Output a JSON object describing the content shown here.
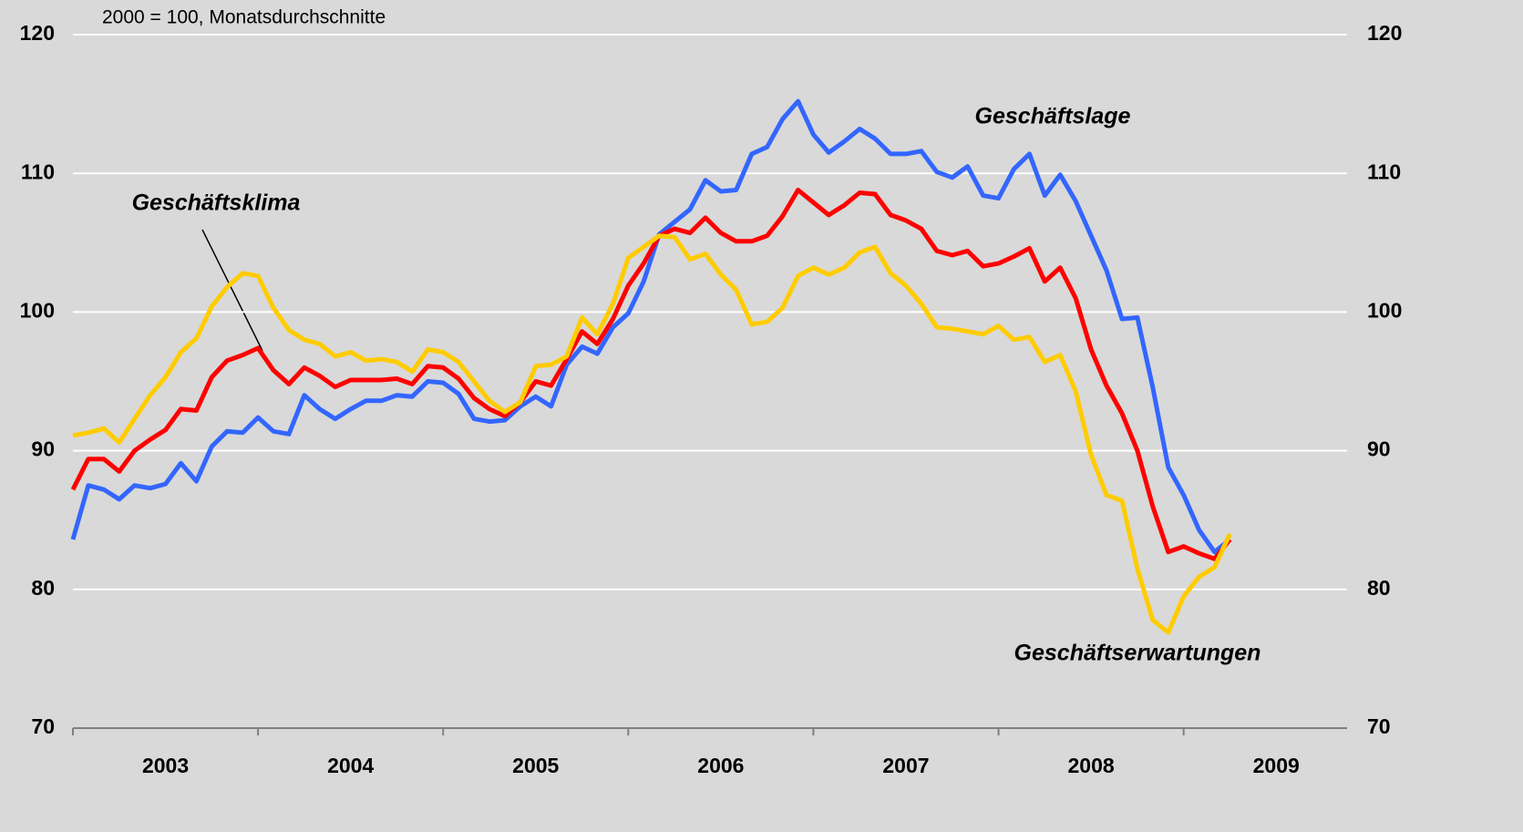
{
  "chart_data": {
    "type": "line",
    "subtitle": "2000 = 100, Monatsdurchschnitte",
    "x": [
      2003,
      2003.083,
      2003.167,
      2003.25,
      2003.333,
      2003.417,
      2003.5,
      2003.583,
      2003.667,
      2003.75,
      2003.833,
      2003.917,
      2004,
      2004.083,
      2004.167,
      2004.25,
      2004.333,
      2004.417,
      2004.5,
      2004.583,
      2004.667,
      2004.75,
      2004.833,
      2004.917,
      2005,
      2005.083,
      2005.167,
      2005.25,
      2005.333,
      2005.417,
      2005.5,
      2005.583,
      2005.667,
      2005.75,
      2005.833,
      2005.917,
      2006,
      2006.083,
      2006.167,
      2006.25,
      2006.333,
      2006.417,
      2006.5,
      2006.583,
      2006.667,
      2006.75,
      2006.833,
      2006.917,
      2007,
      2007.083,
      2007.167,
      2007.25,
      2007.333,
      2007.417,
      2007.5,
      2007.583,
      2007.667,
      2007.75,
      2007.833,
      2007.917,
      2008,
      2008.083,
      2008.167,
      2008.25,
      2008.333,
      2008.417,
      2008.5,
      2008.583,
      2008.667,
      2008.75,
      2008.833,
      2008.917,
      2009,
      2009.083,
      2009.167,
      2009.25
    ],
    "series": [
      {
        "name": "Geschäftslage",
        "color": "#3366ff",
        "values": [
          83.6,
          87.5,
          87.2,
          86.5,
          87.5,
          87.3,
          87.6,
          89.1,
          87.8,
          90.3,
          91.4,
          91.3,
          92.4,
          91.4,
          91.2,
          94.0,
          93.0,
          92.3,
          93.0,
          93.6,
          93.6,
          94.0,
          93.9,
          95.0,
          94.9,
          94.1,
          92.3,
          92.1,
          92.2,
          93.2,
          93.9,
          93.2,
          96.2,
          97.5,
          97.0,
          98.9,
          99.9,
          102.2,
          105.6,
          106.5,
          107.4,
          109.5,
          108.7,
          108.8,
          111.4,
          111.9,
          113.9,
          115.2,
          112.8,
          111.5,
          112.3,
          113.2,
          112.5,
          111.4,
          111.4,
          111.6,
          110.1,
          109.7,
          110.5,
          108.4,
          108.2,
          110.3,
          111.4,
          108.4,
          109.9,
          108.0,
          105.5,
          103.0,
          99.5,
          99.6,
          94.6,
          88.8,
          86.8,
          84.3,
          82.7,
          83.6
        ]
      },
      {
        "name": "Geschäftsklima",
        "color": "#ff0000",
        "values": [
          87.2,
          89.4,
          89.4,
          88.5,
          90.0,
          90.8,
          91.5,
          93.0,
          92.9,
          95.3,
          96.5,
          96.9,
          97.4,
          95.8,
          94.8,
          96.0,
          95.4,
          94.6,
          95.1,
          95.1,
          95.1,
          95.2,
          94.8,
          96.1,
          96.0,
          95.2,
          93.8,
          93.0,
          92.5,
          93.5,
          95.0,
          94.7,
          96.6,
          98.6,
          97.7,
          99.5,
          101.9,
          103.5,
          105.5,
          106.0,
          105.7,
          106.8,
          105.7,
          105.1,
          105.1,
          105.5,
          106.9,
          108.8,
          107.9,
          107.0,
          107.7,
          108.6,
          108.5,
          107.0,
          106.6,
          106.0,
          104.4,
          104.1,
          104.4,
          103.3,
          103.5,
          104.0,
          104.6,
          102.2,
          103.2,
          101.0,
          97.3,
          94.7,
          92.7,
          90.0,
          86.0,
          82.7,
          83.1,
          82.6,
          82.2,
          83.6
        ]
      },
      {
        "name": "Geschäftserwartungen",
        "color": "#ffcc00",
        "values": [
          91.1,
          91.3,
          91.6,
          90.6,
          92.3,
          94.0,
          95.3,
          97.1,
          98.1,
          100.4,
          101.8,
          102.8,
          102.6,
          100.3,
          98.7,
          98.0,
          97.7,
          96.8,
          97.1,
          96.5,
          96.6,
          96.4,
          95.7,
          97.3,
          97.1,
          96.4,
          95.0,
          93.6,
          92.8,
          93.5,
          96.1,
          96.2,
          96.8,
          99.6,
          98.4,
          100.6,
          103.9,
          104.7,
          105.5,
          105.4,
          103.8,
          104.2,
          102.7,
          101.6,
          99.1,
          99.3,
          100.3,
          102.6,
          103.2,
          102.7,
          103.2,
          104.3,
          104.7,
          102.8,
          101.9,
          100.6,
          98.9,
          98.8,
          98.6,
          98.4,
          99.0,
          98.0,
          98.2,
          96.4,
          96.9,
          94.3,
          89.7,
          86.8,
          86.4,
          81.5,
          77.8,
          76.9,
          79.5,
          80.9,
          81.6,
          84.0
        ]
      }
    ],
    "xlim": [
      2003,
      2009.883
    ],
    "xticks": [
      2003,
      2004,
      2005,
      2006,
      2007,
      2008,
      2009
    ],
    "ylim": [
      70,
      120
    ],
    "yticks": [
      70,
      80,
      90,
      100,
      110,
      120
    ],
    "y2lim": [
      70,
      120
    ],
    "y2ticks": [
      70,
      80,
      90,
      100,
      110,
      120
    ],
    "grid": true
  }
}
